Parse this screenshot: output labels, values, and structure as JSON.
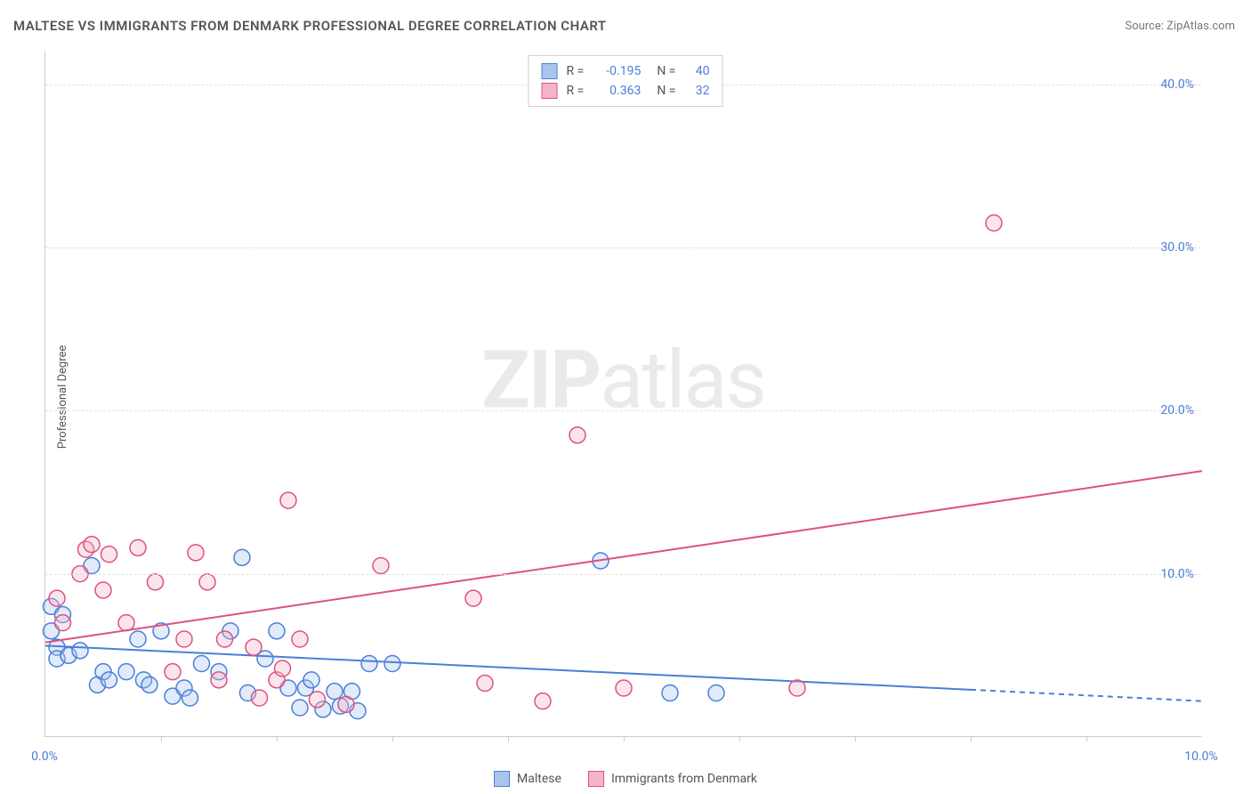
{
  "title": "MALTESE VS IMMIGRANTS FROM DENMARK PROFESSIONAL DEGREE CORRELATION CHART",
  "source": "Source: ZipAtlas.com",
  "y_axis_label": "Professional Degree",
  "watermark": {
    "bold": "ZIP",
    "light": "atlas"
  },
  "chart": {
    "type": "scatter",
    "xlim": [
      0,
      10
    ],
    "ylim": [
      0,
      42
    ],
    "x_tick_labels": [
      {
        "value": 0,
        "label": "0.0%"
      },
      {
        "value": 10,
        "label": "10.0%"
      }
    ],
    "x_minor_ticks": [
      1,
      2,
      3,
      4,
      5,
      6,
      7,
      8,
      9
    ],
    "y_ticks": [
      {
        "value": 10,
        "label": "10.0%"
      },
      {
        "value": 20,
        "label": "20.0%"
      },
      {
        "value": 30,
        "label": "30.0%"
      },
      {
        "value": 40,
        "label": "40.0%"
      }
    ],
    "x_tick_color": "#4a7fd8",
    "y_tick_color": "#4a7fd8",
    "grid_color": "#e0e0e0",
    "background_color": "#ffffff",
    "marker_radius": 9,
    "marker_stroke_width": 1.5,
    "marker_fill_opacity": 0.35,
    "trend_line_width": 2,
    "series": [
      {
        "name": "Maltese",
        "color_stroke": "#4a7fd8",
        "color_fill": "#a8c5ee",
        "R": "-0.195",
        "N": "40",
        "trend": {
          "x1": 0,
          "y1": 5.6,
          "x2": 8,
          "y2": 2.9,
          "x_dash_from": 8,
          "x2_ext": 10,
          "y2_ext": 2.2
        },
        "points": [
          [
            0.05,
            8.0
          ],
          [
            0.05,
            6.5
          ],
          [
            0.1,
            5.5
          ],
          [
            0.1,
            4.8
          ],
          [
            0.15,
            7.5
          ],
          [
            0.2,
            5.0
          ],
          [
            0.3,
            5.3
          ],
          [
            0.4,
            10.5
          ],
          [
            0.45,
            3.2
          ],
          [
            0.5,
            4.0
          ],
          [
            0.55,
            3.5
          ],
          [
            0.7,
            4.0
          ],
          [
            0.8,
            6.0
          ],
          [
            0.85,
            3.5
          ],
          [
            0.9,
            3.2
          ],
          [
            1.0,
            6.5
          ],
          [
            1.1,
            2.5
          ],
          [
            1.2,
            3.0
          ],
          [
            1.25,
            2.4
          ],
          [
            1.35,
            4.5
          ],
          [
            1.5,
            4.0
          ],
          [
            1.6,
            6.5
          ],
          [
            1.7,
            11.0
          ],
          [
            1.75,
            2.7
          ],
          [
            1.9,
            4.8
          ],
          [
            2.0,
            6.5
          ],
          [
            2.1,
            3.0
          ],
          [
            2.2,
            1.8
          ],
          [
            2.25,
            3.0
          ],
          [
            2.3,
            3.5
          ],
          [
            2.4,
            1.7
          ],
          [
            2.5,
            2.8
          ],
          [
            2.55,
            1.9
          ],
          [
            2.65,
            2.8
          ],
          [
            2.7,
            1.6
          ],
          [
            2.8,
            4.5
          ],
          [
            3.0,
            4.5
          ],
          [
            4.8,
            10.8
          ],
          [
            5.4,
            2.7
          ],
          [
            5.8,
            2.7
          ]
        ]
      },
      {
        "name": "Immigrants from Denmark",
        "color_stroke": "#e05080",
        "color_fill": "#f4b5c9",
        "R": "0.363",
        "N": "32",
        "trend": {
          "x1": 0,
          "y1": 5.8,
          "x2": 10,
          "y2": 16.3
        },
        "points": [
          [
            0.1,
            8.5
          ],
          [
            0.15,
            7.0
          ],
          [
            0.3,
            10.0
          ],
          [
            0.35,
            11.5
          ],
          [
            0.4,
            11.8
          ],
          [
            0.5,
            9.0
          ],
          [
            0.55,
            11.2
          ],
          [
            0.7,
            7.0
          ],
          [
            0.8,
            11.6
          ],
          [
            0.95,
            9.5
          ],
          [
            1.1,
            4.0
          ],
          [
            1.2,
            6.0
          ],
          [
            1.3,
            11.3
          ],
          [
            1.4,
            9.5
          ],
          [
            1.5,
            3.5
          ],
          [
            1.55,
            6.0
          ],
          [
            1.8,
            5.5
          ],
          [
            1.85,
            2.4
          ],
          [
            2.0,
            3.5
          ],
          [
            2.05,
            4.2
          ],
          [
            2.1,
            14.5
          ],
          [
            2.2,
            6.0
          ],
          [
            2.35,
            2.3
          ],
          [
            2.6,
            2.0
          ],
          [
            2.9,
            10.5
          ],
          [
            3.7,
            8.5
          ],
          [
            3.8,
            3.3
          ],
          [
            4.3,
            2.2
          ],
          [
            4.6,
            18.5
          ],
          [
            5.0,
            3.0
          ],
          [
            6.5,
            3.0
          ],
          [
            8.2,
            31.5
          ]
        ]
      }
    ]
  },
  "legend_top": {
    "R_label": "R =",
    "N_label": "N ="
  },
  "fonts": {
    "title_size": 15,
    "label_size": 13,
    "tick_size": 14,
    "legend_size": 14
  }
}
